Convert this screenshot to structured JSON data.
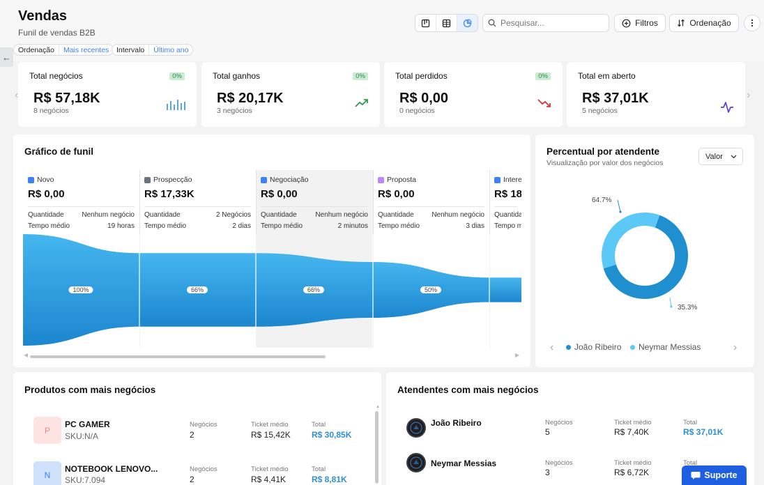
{
  "header": {
    "title": "Vendas",
    "subtitle": "Funil de vendas B2B",
    "search_placeholder": "Pesquisar...",
    "filters_label": "Filtros",
    "sort_label": "Ordenação",
    "chips": [
      {
        "key": "Ordenação",
        "value": "Mais recentes"
      },
      {
        "key": "Intervalo",
        "value": "Último ano"
      }
    ],
    "view_modes": [
      "kanban-icon",
      "table-icon",
      "chart-icon"
    ],
    "active_view": "chart-icon"
  },
  "stats": [
    {
      "label": "Total negócios",
      "percent": "0%",
      "value": "R$ 57,18K",
      "count": "8 negócios",
      "icon": "bar-chart-icon",
      "icon_color": "#2d8fd4"
    },
    {
      "label": "Total ganhos",
      "percent": "0%",
      "value": "R$ 20,17K",
      "count": "3 negócios",
      "icon": "trend-up-icon",
      "icon_color": "#2f9a54"
    },
    {
      "label": "Total perdidos",
      "percent": "0%",
      "value": "R$ 0,00",
      "count": "0 negócios",
      "icon": "trend-down-icon",
      "icon_color": "#d23a3a"
    },
    {
      "label": "Total em aberto",
      "value": "R$ 37,01K",
      "count": "5 negócios",
      "icon": "activity-icon",
      "icon_color": "#5a3fd6"
    }
  ],
  "funnel": {
    "title": "Gráfico de funil",
    "stages": [
      {
        "name": "Novo",
        "color": "#3b82f6",
        "value": "R$ 0,00",
        "qty_label": "Quantidade",
        "qty": "Nenhum negócio",
        "time_label": "Tempo médio",
        "time": "19 horas",
        "percent": "100%"
      },
      {
        "name": "Prospecção",
        "color": "#6b7280",
        "value": "R$ 17,33K",
        "qty_label": "Quantidade",
        "qty": "2 Negócios",
        "time_label": "Tempo médio",
        "time": "2 dias",
        "percent": "66%"
      },
      {
        "name": "Negociação",
        "color": "#3b82f6",
        "value": "R$ 0,00",
        "qty_label": "Quantidade",
        "qty": "Nenhum negócio",
        "time_label": "Tempo médio",
        "time": "2 minutos",
        "percent": "66%"
      },
      {
        "name": "Proposta",
        "color": "#c084fc",
        "value": "R$ 0,00",
        "qty_label": "Quantidade",
        "qty": "Nenhum negócio",
        "time_label": "Tempo médio",
        "time": "3 dias",
        "percent": "50%"
      },
      {
        "name": "Intere",
        "color": "#3b82f6",
        "value": "R$ 18,",
        "qty_label": "Quantida",
        "qty": "",
        "time_label": "Tempo m",
        "time": ""
      }
    ]
  },
  "pie": {
    "title": "Percentual por atendente",
    "subtitle": "Visualização por valor dos negócios",
    "select_value": "Valor",
    "slices": [
      {
        "name": "João Ribeiro",
        "percent": 64.7,
        "label": "64.7%",
        "color": "#1f8fd0"
      },
      {
        "name": "Neymar Messias",
        "percent": 35.3,
        "label": "35.3%",
        "color": "#5bc8f5"
      }
    ]
  },
  "products": {
    "title": "Produtos com mais negócios",
    "items": [
      {
        "initial": "P",
        "name": "PC GAMER",
        "sku": "SKU:N/A",
        "deals_label": "Negócios",
        "deals": "2",
        "ticket_label": "Ticket médio",
        "ticket": "R$ 15,42K",
        "total_label": "Total",
        "total": "R$ 30,85K",
        "thumb_bg": "#fde3e1",
        "thumb_fg": "#f08a80"
      },
      {
        "initial": "N",
        "name": "NOTEBOOK LENOVO...",
        "sku": "SKU:7.094",
        "deals_label": "Negócios",
        "deals": "2",
        "ticket_label": "Ticket médio",
        "ticket": "R$ 4,41K",
        "total_label": "Total",
        "total": "R$ 8,81K",
        "thumb_bg": "#cfe1fb",
        "thumb_fg": "#3b82f6"
      }
    ]
  },
  "agents": {
    "title": "Atendentes com mais negócios",
    "items": [
      {
        "name": "João Ribeiro",
        "deals_label": "Negócios",
        "deals": "5",
        "ticket_label": "Ticket médio",
        "ticket": "R$ 7,40K",
        "total_label": "Total",
        "total": "R$ 37,01K"
      },
      {
        "name": "Neymar Messias",
        "deals_label": "Negócios",
        "deals": "3",
        "ticket_label": "Ticket médio",
        "ticket": "R$ 6,72K",
        "total_label": "Total",
        "total": ""
      }
    ]
  },
  "support_label": "Suporte"
}
